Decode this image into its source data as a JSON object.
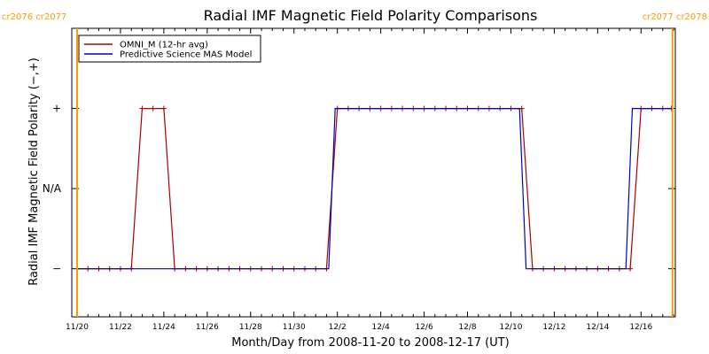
{
  "chart_data": {
    "type": "line",
    "title": "Radial IMF Magnetic Field Polarity Comparisons",
    "xlabel": "Month/Day from 2008-11-20 to 2008-12-17 (UT)",
    "ylabel": "Radial IMF Magnetic Field Polarity (−,+)",
    "x_tick_labels": [
      "11/20",
      "11/22",
      "11/24",
      "11/26",
      "11/28",
      "11/30",
      "12/2",
      "12/4",
      "12/6",
      "12/8",
      "12/10",
      "12/12",
      "12/14",
      "12/16"
    ],
    "x_tick_days": [
      0,
      2,
      4,
      6,
      8,
      10,
      12,
      14,
      16,
      18,
      20,
      22,
      24,
      26
    ],
    "xlim_days": [
      0,
      27.5
    ],
    "y_levels": [
      {
        "label": "+",
        "value": 1
      },
      {
        "label": "N/A",
        "value": 0
      },
      {
        "label": "−",
        "value": -1
      }
    ],
    "ylim": [
      -1.6,
      2.0
    ],
    "cr_boundaries": [
      {
        "day": 0.0,
        "label": "cr2076 cr2077"
      },
      {
        "day": 27.45,
        "label": "cr2077 cr2078"
      }
    ],
    "cr_color": "#ff9900",
    "series": [
      {
        "name": "OMNI_M (12-hr avg)",
        "color": "#aa0000",
        "markers": true,
        "points": [
          [
            0,
            -1
          ],
          [
            0.5,
            -1
          ],
          [
            1,
            -1
          ],
          [
            1.5,
            -1
          ],
          [
            2,
            -1
          ],
          [
            2.5,
            -1
          ],
          [
            3,
            1
          ],
          [
            3.5,
            1
          ],
          [
            4,
            1
          ],
          [
            4.5,
            -1
          ],
          [
            5,
            -1
          ],
          [
            5.5,
            -1
          ],
          [
            6,
            -1
          ],
          [
            6.5,
            -1
          ],
          [
            7,
            -1
          ],
          [
            7.5,
            -1
          ],
          [
            8,
            -1
          ],
          [
            8.5,
            -1
          ],
          [
            9,
            -1
          ],
          [
            9.5,
            -1
          ],
          [
            10,
            -1
          ],
          [
            10.5,
            -1
          ],
          [
            11,
            -1
          ],
          [
            11.5,
            -1
          ],
          [
            12,
            1
          ],
          [
            12.5,
            1
          ],
          [
            13,
            1
          ],
          [
            13.5,
            1
          ],
          [
            14,
            1
          ],
          [
            14.5,
            1
          ],
          [
            15,
            1
          ],
          [
            15.5,
            1
          ],
          [
            16,
            1
          ],
          [
            16.5,
            1
          ],
          [
            17,
            1
          ],
          [
            17.5,
            1
          ],
          [
            18,
            1
          ],
          [
            18.5,
            1
          ],
          [
            19,
            1
          ],
          [
            19.5,
            1
          ],
          [
            20,
            1
          ],
          [
            20.5,
            1
          ],
          [
            21,
            -1
          ],
          [
            21.5,
            -1
          ],
          [
            22,
            -1
          ],
          [
            22.5,
            -1
          ],
          [
            23,
            -1
          ],
          [
            23.5,
            -1
          ],
          [
            24,
            -1
          ],
          [
            24.5,
            -1
          ],
          [
            25,
            -1
          ],
          [
            25.5,
            -1
          ],
          [
            26,
            1
          ],
          [
            26.5,
            1
          ],
          [
            27,
            1
          ],
          [
            27.4,
            1
          ]
        ]
      },
      {
        "name": "Predictive Science MAS Model",
        "color": "#0000bb",
        "markers": false,
        "points": [
          [
            0,
            -1
          ],
          [
            11.6,
            -1
          ],
          [
            11.9,
            1
          ],
          [
            20.4,
            1
          ],
          [
            20.7,
            -1
          ],
          [
            25.3,
            -1
          ],
          [
            25.6,
            1
          ],
          [
            27.4,
            1
          ]
        ]
      }
    ],
    "legend_position": "top-left"
  }
}
